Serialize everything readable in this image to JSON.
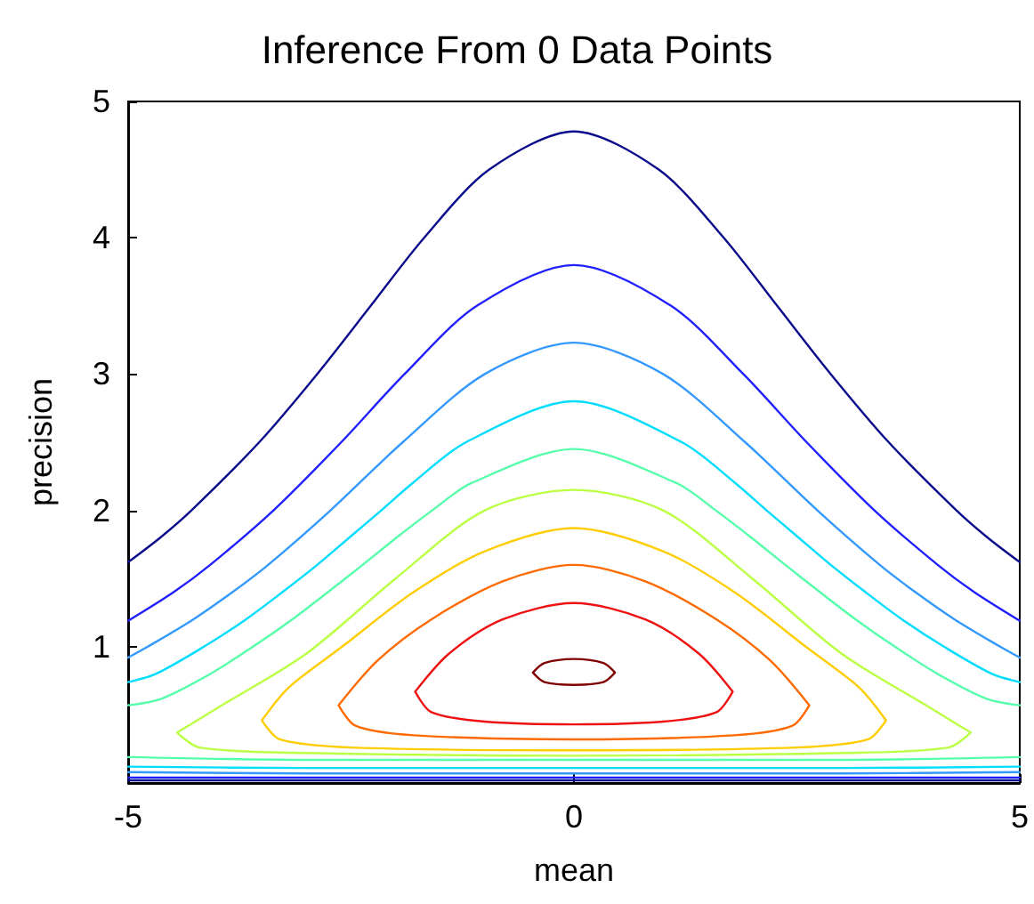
{
  "chart_data": {
    "type": "line",
    "title": "Inference From 0 Data Points",
    "xlabel": "mean",
    "ylabel": "precision",
    "xlim": [
      -5,
      5
    ],
    "xticks": [
      -5,
      0,
      5
    ],
    "ylim": [
      0,
      5
    ],
    "yticks": [
      1,
      2,
      3,
      4,
      5
    ],
    "grid": false,
    "marker": "none",
    "line_style": "solid",
    "series": [
      {
        "color": "#0a0a8c",
        "x": [
          -5,
          -4.64,
          -4.29,
          -3.53,
          -2.88,
          -2.28,
          -1.68,
          -0.95,
          0,
          0.95,
          1.68,
          2.28,
          2.88,
          3.53,
          4.29,
          4.64,
          5,
          null,
          -5,
          0,
          5
        ],
        "values": [
          1.62,
          1.8,
          2.0,
          2.5,
          3.0,
          3.5,
          4.0,
          4.5,
          4.78,
          4.5,
          4.0,
          3.5,
          3.0,
          2.5,
          2.0,
          1.8,
          1.62,
          null,
          0.02,
          0.02,
          0.02
        ]
      },
      {
        "color": "#1f1fff",
        "x": [
          -5,
          -4.49,
          -4.08,
          -3.37,
          -2.61,
          -1.9,
          -1.09,
          0,
          1.09,
          1.9,
          2.61,
          3.37,
          4.08,
          4.49,
          5,
          null,
          -5,
          0,
          5
        ],
        "values": [
          1.19,
          1.4,
          1.6,
          2.0,
          2.5,
          3.0,
          3.5,
          3.8,
          3.5,
          3.0,
          2.5,
          2.0,
          1.6,
          1.4,
          1.19,
          null,
          0.04,
          0.04,
          0.04
        ]
      },
      {
        "color": "#3399ff",
        "x": [
          -5,
          -4.78,
          -4.27,
          -3.83,
          -3.43,
          -2.73,
          -1.92,
          -1.0,
          0,
          1.0,
          1.92,
          2.73,
          3.43,
          3.83,
          4.27,
          4.78,
          5,
          null,
          -5,
          -3,
          0,
          3,
          5
        ],
        "values": [
          0.92,
          1.0,
          1.2,
          1.4,
          1.6,
          2.0,
          2.5,
          3.0,
          3.23,
          3.0,
          2.5,
          2.0,
          1.6,
          1.4,
          1.2,
          1.0,
          0.92,
          null,
          0.08,
          0.07,
          0.07,
          0.07,
          0.08
        ]
      },
      {
        "color": "#00ddff",
        "x": [
          -5,
          -4.69,
          -4.15,
          -3.68,
          -3.27,
          -2.88,
          -2.52,
          -2.16,
          -1.81,
          -1.21,
          0,
          1.21,
          1.81,
          2.16,
          2.52,
          2.88,
          3.27,
          3.68,
          4.15,
          4.69,
          5,
          null,
          -5,
          -3,
          0,
          3,
          5
        ],
        "values": [
          0.74,
          0.8,
          1.0,
          1.2,
          1.4,
          1.6,
          1.8,
          2.0,
          2.2,
          2.5,
          2.8,
          2.5,
          2.2,
          2.0,
          1.8,
          1.6,
          1.4,
          1.2,
          1.0,
          0.8,
          0.74,
          null,
          0.12,
          0.11,
          0.11,
          0.11,
          0.12
        ]
      },
      {
        "color": "#55ffaa",
        "x": [
          -5,
          -4.62,
          -4.08,
          -3.6,
          -3.16,
          -2.76,
          -2.37,
          -1.99,
          -1.59,
          -1.15,
          0,
          1.15,
          1.59,
          1.99,
          2.37,
          2.76,
          3.16,
          3.6,
          4.08,
          4.62,
          5,
          null,
          -5,
          -3,
          0,
          3,
          5
        ],
        "values": [
          0.57,
          0.62,
          0.8,
          1.0,
          1.2,
          1.4,
          1.6,
          1.8,
          2.0,
          2.2,
          2.45,
          2.2,
          2.0,
          1.8,
          1.6,
          1.4,
          1.2,
          1.0,
          0.8,
          0.62,
          0.57,
          null,
          0.19,
          0.17,
          0.17,
          0.17,
          0.19
        ]
      },
      {
        "color": "#bbff44",
        "x": [
          -4.45,
          -4,
          -3,
          -2,
          -1,
          0,
          1,
          2,
          3,
          4,
          4.45,
          null,
          -4.45,
          -4.2,
          -3,
          0,
          3,
          4.2,
          4.45
        ],
        "values": [
          0.37,
          0.55,
          0.95,
          1.5,
          2.0,
          2.15,
          2.0,
          1.5,
          0.95,
          0.55,
          0.37,
          null,
          0.37,
          0.26,
          0.22,
          0.2,
          0.22,
          0.26,
          0.37
        ]
      },
      {
        "color": "#ffcc00",
        "x": [
          -3.5,
          -3.2,
          -2.6,
          -1.8,
          -1,
          0,
          1,
          1.8,
          2.6,
          3.2,
          3.5,
          null,
          -3.5,
          -3.3,
          -2.5,
          0,
          2.5,
          3.3,
          3.5
        ],
        "values": [
          0.46,
          0.7,
          1.0,
          1.4,
          1.7,
          1.87,
          1.7,
          1.4,
          1.0,
          0.7,
          0.46,
          null,
          0.46,
          0.32,
          0.26,
          0.24,
          0.26,
          0.32,
          0.46
        ]
      },
      {
        "color": "#ff6a00",
        "x": [
          -2.64,
          -2.2,
          -1.6,
          -0.8,
          0,
          0.8,
          1.6,
          2.2,
          2.64,
          null,
          -2.64,
          -2.45,
          -1.8,
          0,
          1.8,
          2.45,
          2.64
        ],
        "values": [
          0.57,
          0.9,
          1.2,
          1.48,
          1.6,
          1.48,
          1.2,
          0.9,
          0.57,
          null,
          0.57,
          0.42,
          0.35,
          0.32,
          0.35,
          0.42,
          0.57
        ]
      },
      {
        "color": "#ee1111",
        "x": [
          -1.78,
          -1.4,
          -0.8,
          0,
          0.8,
          1.4,
          1.78,
          null,
          -1.78,
          -1.6,
          -1,
          0,
          1,
          1.6,
          1.78
        ],
        "values": [
          0.67,
          0.95,
          1.2,
          1.32,
          1.2,
          0.95,
          0.67,
          null,
          0.67,
          0.52,
          0.45,
          0.43,
          0.45,
          0.52,
          0.67
        ]
      },
      {
        "color": "#800000",
        "x": [
          -0.46,
          -0.33,
          0,
          0.33,
          0.46,
          null,
          -0.46,
          -0.33,
          0,
          0.33,
          0.46
        ],
        "values": [
          0.81,
          0.88,
          0.91,
          0.88,
          0.81,
          null,
          0.81,
          0.74,
          0.72,
          0.74,
          0.81
        ]
      }
    ]
  }
}
